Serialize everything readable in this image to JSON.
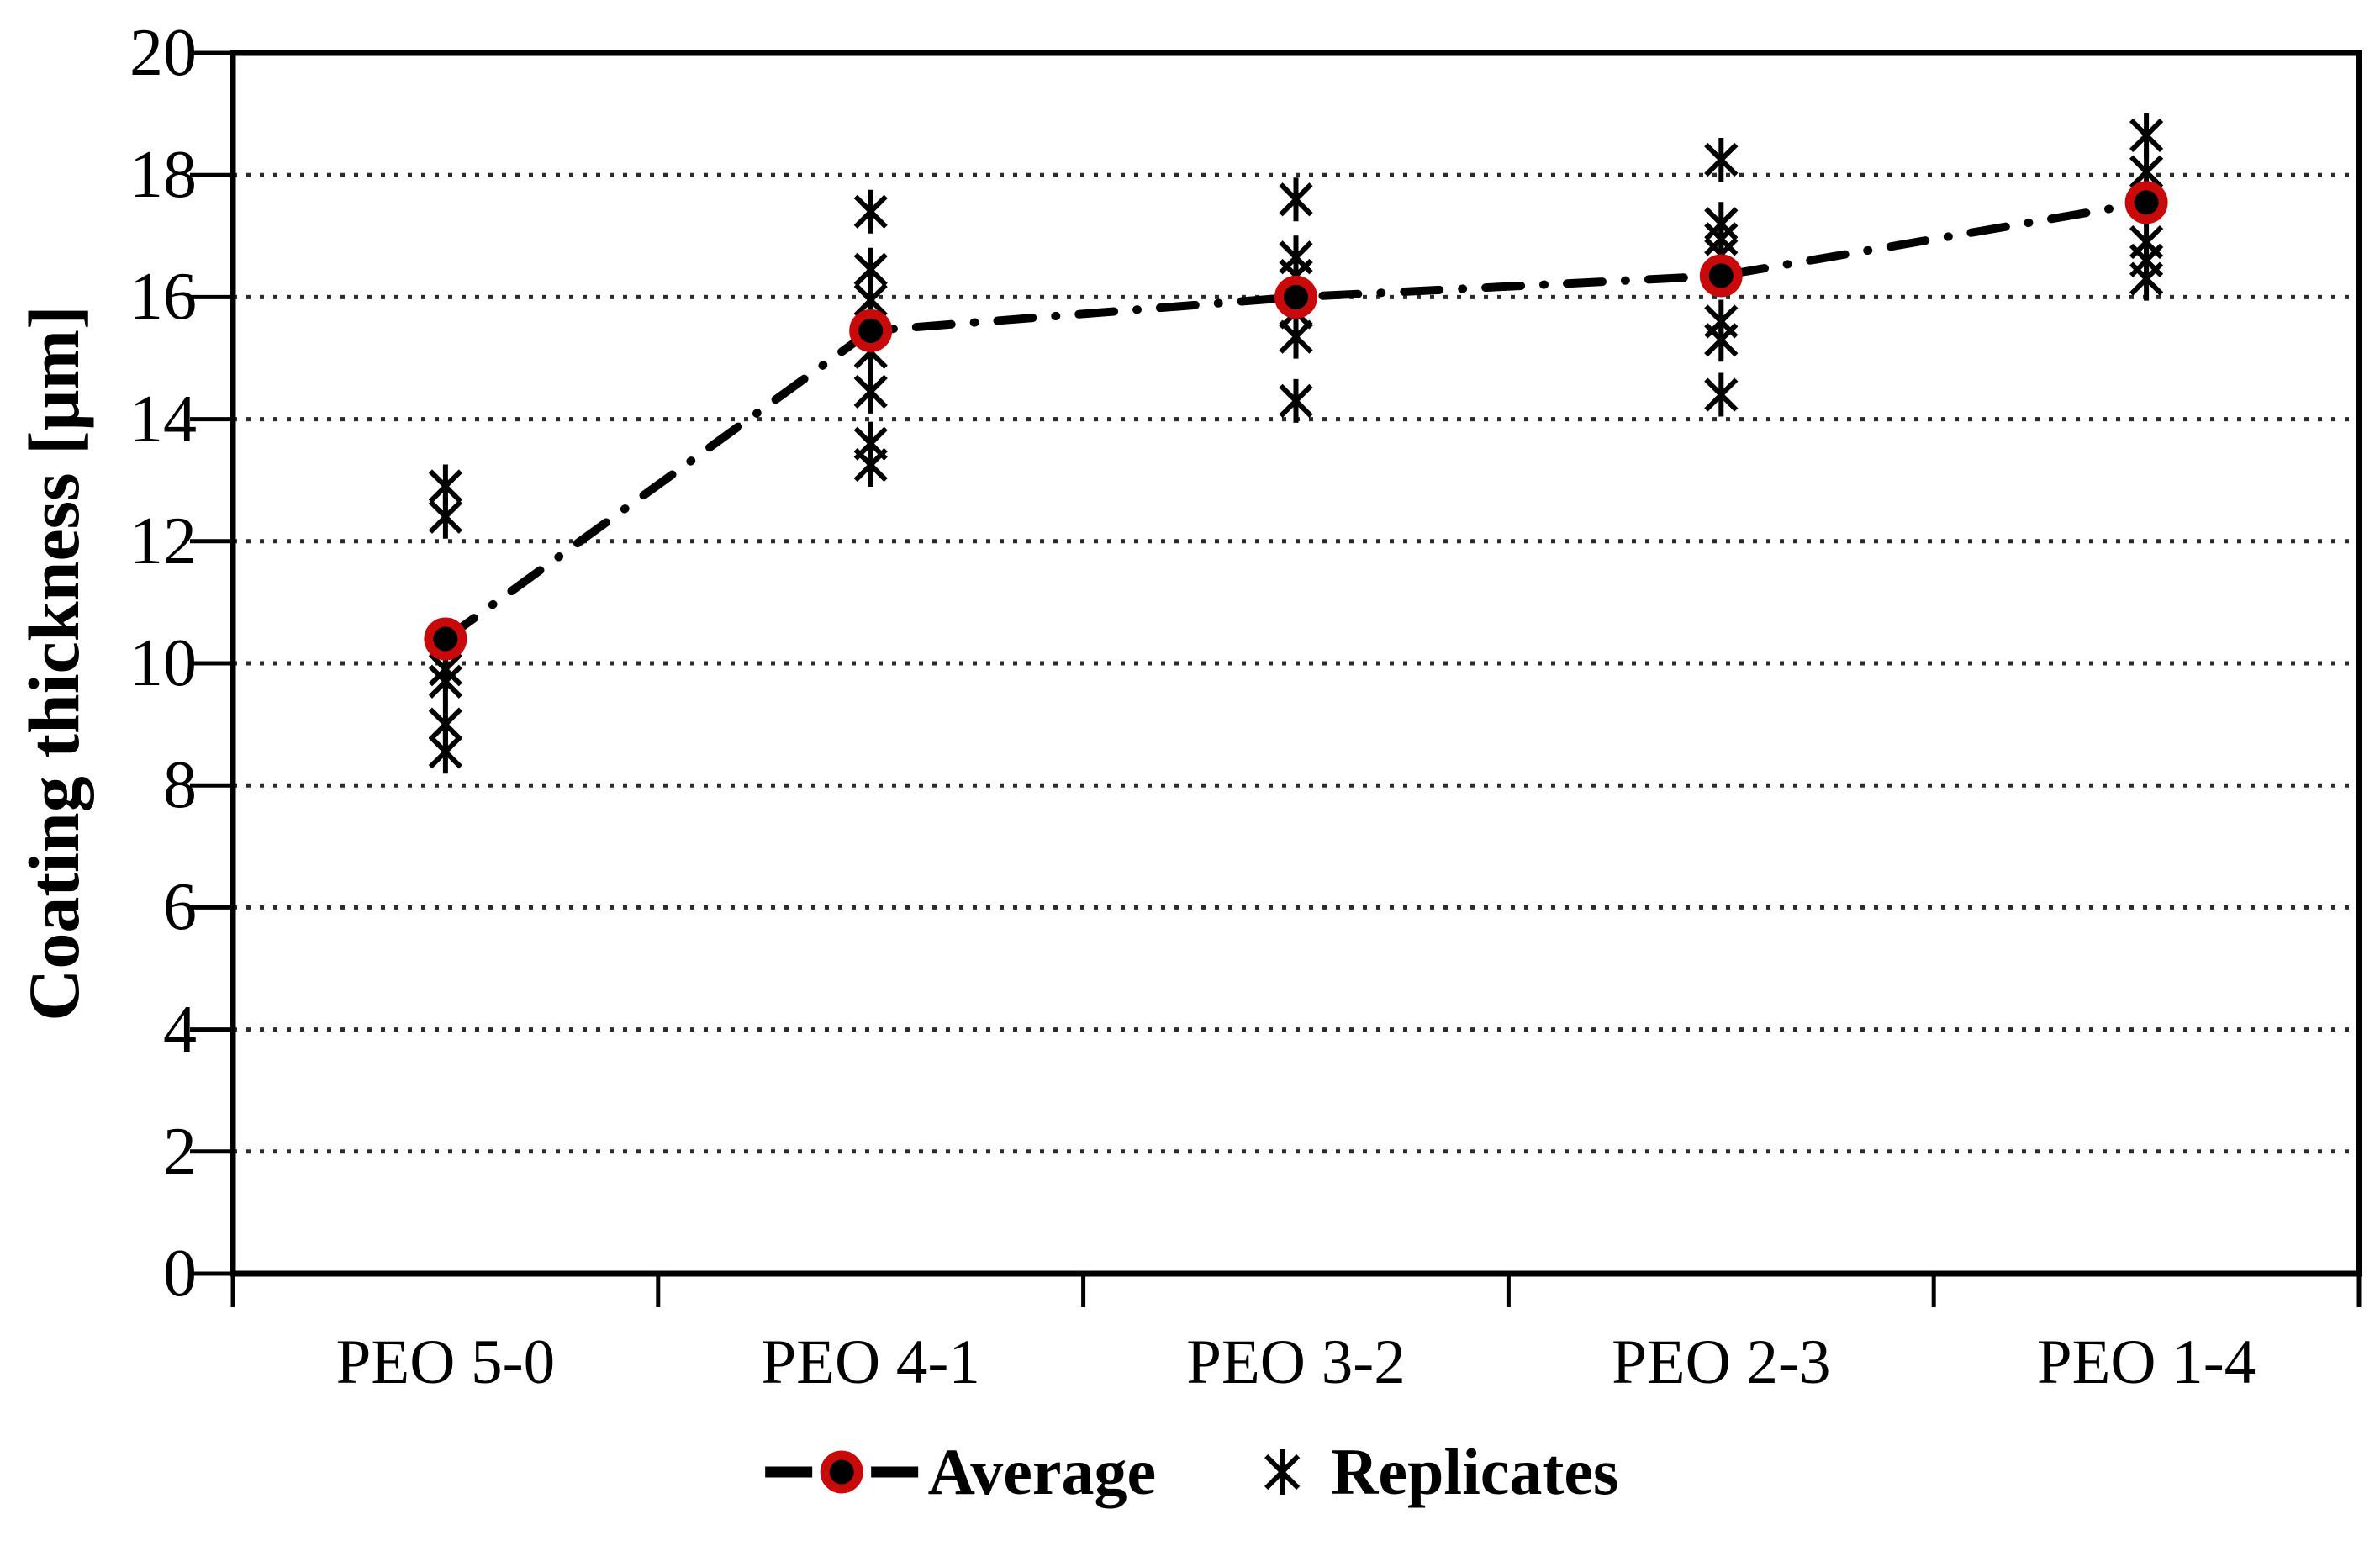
{
  "figure": {
    "background": "#FFFFFF"
  },
  "chart_data": {
    "type": "scatter",
    "title": "",
    "xlabel": "",
    "ylabel": "Coating thickness [μm]",
    "ylim": [
      0,
      20
    ],
    "y_ticks": [
      0,
      2,
      4,
      6,
      8,
      10,
      12,
      14,
      16,
      18,
      20
    ],
    "grid": "dotted-horizontal",
    "legend_position": "bottom",
    "categories": [
      "PEO 5-0",
      "PEO 4-1",
      "PEO 3-2",
      "PEO 2-3",
      "PEO 1-4"
    ],
    "series": [
      {
        "name": "Average",
        "type": "line",
        "line_style": "dash-dot",
        "marker": "filled-circle-red-ring",
        "values": [
          10.4,
          15.45,
          16.0,
          16.35,
          17.55
        ]
      },
      {
        "name": "Replicates",
        "type": "scatter",
        "marker": "asterisk",
        "values_by_category": [
          [
            12.9,
            12.4,
            9.9,
            9.7,
            9.0,
            8.55
          ],
          [
            17.4,
            16.45,
            15.95,
            15.1,
            14.45,
            13.6,
            13.25
          ],
          [
            17.6,
            16.65,
            16.35,
            15.75,
            15.35,
            14.3
          ],
          [
            18.25,
            17.2,
            16.95,
            16.7,
            15.6,
            15.3,
            14.4
          ],
          [
            18.65,
            18.05,
            16.9,
            16.6,
            16.3
          ]
        ]
      }
    ],
    "colors": {
      "marker_fill": "#000000",
      "average_ring": "#C80A0A",
      "line": "#000000",
      "grid": "#2B2B2B",
      "axis": "#000000"
    }
  }
}
